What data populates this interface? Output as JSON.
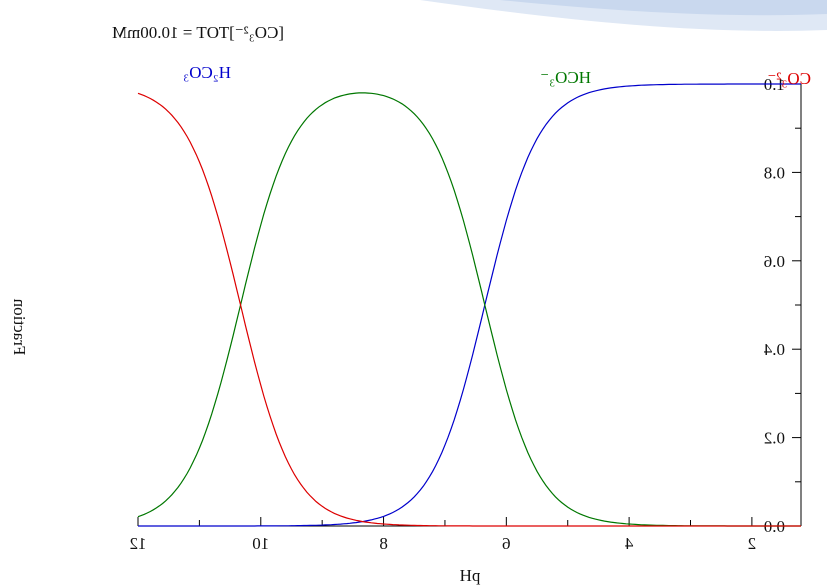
{
  "chart_data": {
    "type": "line",
    "title": "[CO₃²⁻]TOT = 10.00mM",
    "xlabel": "pH",
    "ylabel": "Fraction",
    "xlim": [
      1.2,
      12
    ],
    "ylim": [
      0,
      1.0
    ],
    "x_ticks": [
      2,
      4,
      6,
      8,
      10,
      12
    ],
    "x_tick_labels": [
      "2",
      "4",
      "6",
      "8",
      "10",
      "12"
    ],
    "y_ticks": [
      0,
      0.2,
      0.4,
      0.6,
      0.8,
      1.0
    ],
    "y_tick_labels": [
      "0.0",
      "0.2",
      "0.4",
      "0.6",
      "0.8",
      "1.0"
    ],
    "grid": false,
    "mirrored_horizontally": true,
    "series": [
      {
        "name": "H₂CO₃",
        "label_text": "H₂CO₃",
        "color": "#0000cc",
        "pKa_model": "H2CO3"
      },
      {
        "name": "HCO₃⁻",
        "label_text": "HCO₃⁻",
        "color": "#007700",
        "pKa_model": "HCO3-"
      },
      {
        "name": "CO₃²⁻",
        "label_text": "CO₃²⁻",
        "color": "#dd0000",
        "pKa_model": "CO3--"
      }
    ],
    "pKa1": 6.35,
    "pKa2": 10.33
  }
}
